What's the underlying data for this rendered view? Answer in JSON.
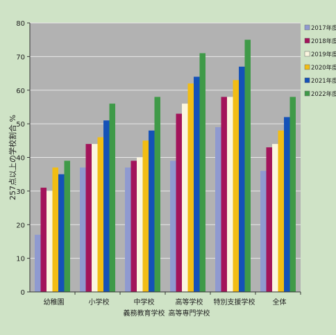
{
  "chart_data": {
    "type": "bar",
    "ylabel": "257点以上の学校割合 %",
    "ylim": [
      0,
      80
    ],
    "yticks": [
      0,
      10,
      20,
      30,
      40,
      50,
      60,
      70,
      80
    ],
    "grid": true,
    "legend_position": "right",
    "categories": [
      [
        "幼稚園"
      ],
      [
        "小学校"
      ],
      [
        "中学校",
        "義務教育学校"
      ],
      [
        "高等学校",
        "高等専門学校"
      ],
      [
        "特別支援学校"
      ],
      [
        "全体"
      ]
    ],
    "series": [
      {
        "name": "2017年度",
        "color": "#8f9ad0",
        "values": [
          17,
          37,
          37,
          39,
          49,
          36
        ]
      },
      {
        "name": "2018年度",
        "color": "#a3145a",
        "values": [
          31,
          44,
          39,
          53,
          58,
          43
        ]
      },
      {
        "name": "2019年度",
        "color": "#fbf6df",
        "values": [
          30,
          44,
          40,
          56,
          58,
          44
        ]
      },
      {
        "name": "2020年度",
        "color": "#f2bd14",
        "values": [
          37,
          46,
          45,
          62,
          63,
          48
        ]
      },
      {
        "name": "2021年度",
        "color": "#1452b8",
        "values": [
          35,
          51,
          48,
          64,
          67,
          52
        ]
      },
      {
        "name": "2022年度",
        "color": "#3f9a48",
        "values": [
          39,
          56,
          58,
          71,
          75,
          58
        ]
      }
    ]
  },
  "style": {
    "background": "#cfe3c6",
    "plot_background": "#b2b2b2",
    "grid_color": "#e8e8e8"
  }
}
